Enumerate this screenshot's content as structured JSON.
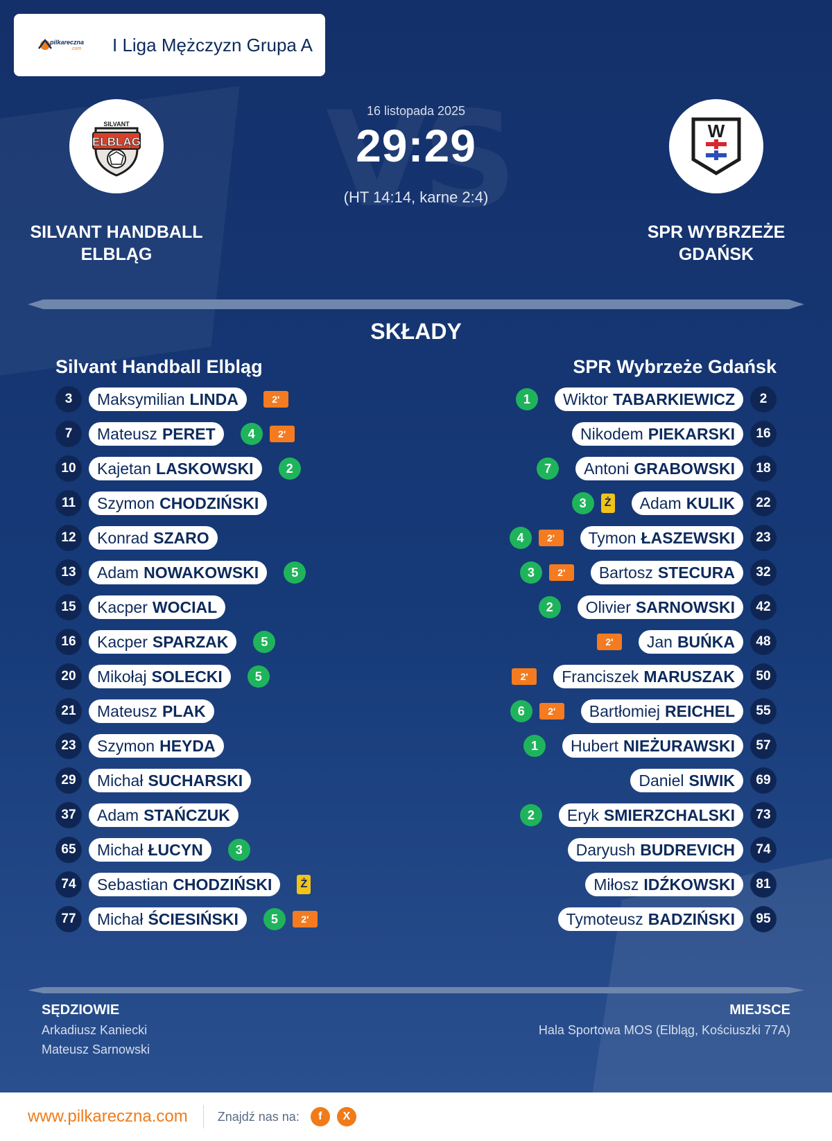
{
  "league": {
    "name": "I Liga Mężczyzn Grupa A",
    "logo_text": "pilkareczna",
    "logo_sub": ".com"
  },
  "match": {
    "date": "16 listopada 2025",
    "score": "29:29",
    "detail": "(HT 14:14, karne 2:4)",
    "vs_watermark": "VS",
    "home_name": "SILVANT HANDBALL ELBLĄG",
    "away_name": "SPR WYBRZEŻE GDAŃSK",
    "home_logo_top": "SILVANT",
    "home_logo_main": "ELBLĄG",
    "away_logo_letter": "W"
  },
  "lineups": {
    "title": "SKŁADY",
    "home_title": "Silvant Handball Elbląg",
    "away_title": "SPR Wybrzeże Gdańsk",
    "home": [
      {
        "num": "3",
        "first": "Maksymilian",
        "last": "LINDA",
        "badges": [
          {
            "type": "pen",
            "text": "2'"
          }
        ]
      },
      {
        "num": "7",
        "first": "Mateusz",
        "last": "PERET",
        "badges": [
          {
            "type": "goals",
            "text": "4"
          },
          {
            "type": "pen",
            "text": "2'"
          }
        ]
      },
      {
        "num": "10",
        "first": "Kajetan",
        "last": "LASKOWSKI",
        "badges": [
          {
            "type": "goals",
            "text": "2"
          }
        ]
      },
      {
        "num": "11",
        "first": "Szymon",
        "last": "CHODZIŃSKI",
        "badges": []
      },
      {
        "num": "12",
        "first": "Konrad",
        "last": "SZARO",
        "badges": []
      },
      {
        "num": "13",
        "first": "Adam",
        "last": "NOWAKOWSKI",
        "badges": [
          {
            "type": "goals",
            "text": "5"
          }
        ]
      },
      {
        "num": "15",
        "first": "Kacper",
        "last": "WOCIAL",
        "badges": []
      },
      {
        "num": "16",
        "first": "Kacper",
        "last": "SPARZAK",
        "badges": [
          {
            "type": "goals",
            "text": "5"
          }
        ]
      },
      {
        "num": "20",
        "first": "Mikołaj",
        "last": "SOLECKI",
        "badges": [
          {
            "type": "goals",
            "text": "5"
          }
        ]
      },
      {
        "num": "21",
        "first": "Mateusz",
        "last": "PLAK",
        "badges": []
      },
      {
        "num": "23",
        "first": "Szymon",
        "last": "HEYDA",
        "badges": []
      },
      {
        "num": "29",
        "first": "Michał",
        "last": "SUCHARSKI",
        "badges": []
      },
      {
        "num": "37",
        "first": "Adam",
        "last": "STAŃCZUK",
        "badges": []
      },
      {
        "num": "65",
        "first": "Michał",
        "last": "ŁUCYN",
        "badges": [
          {
            "type": "goals",
            "text": "3"
          }
        ]
      },
      {
        "num": "74",
        "first": "Sebastian",
        "last": "CHODZIŃSKI",
        "badges": [
          {
            "type": "yel",
            "text": "Ż"
          }
        ]
      },
      {
        "num": "77",
        "first": "Michał",
        "last": "ŚCIESIŃSKI",
        "badges": [
          {
            "type": "goals",
            "text": "5"
          },
          {
            "type": "pen",
            "text": "2'"
          }
        ]
      }
    ],
    "away": [
      {
        "num": "2",
        "first": "Wiktor",
        "last": "TABARKIEWICZ",
        "badges": [
          {
            "type": "goals",
            "text": "1"
          }
        ]
      },
      {
        "num": "16",
        "first": "Nikodem",
        "last": "PIEKARSKI",
        "badges": []
      },
      {
        "num": "18",
        "first": "Antoni",
        "last": "GRABOWSKI",
        "badges": [
          {
            "type": "goals",
            "text": "7"
          }
        ]
      },
      {
        "num": "22",
        "first": "Adam",
        "last": "KULIK",
        "badges": [
          {
            "type": "yel",
            "text": "Ż"
          },
          {
            "type": "goals",
            "text": "3"
          }
        ]
      },
      {
        "num": "23",
        "first": "Tymon",
        "last": "ŁASZEWSKI",
        "badges": [
          {
            "type": "pen",
            "text": "2'"
          },
          {
            "type": "goals",
            "text": "4"
          }
        ]
      },
      {
        "num": "32",
        "first": "Bartosz",
        "last": "STECURA",
        "badges": [
          {
            "type": "pen",
            "text": "2'"
          },
          {
            "type": "goals",
            "text": "3"
          }
        ]
      },
      {
        "num": "42",
        "first": "Olivier",
        "last": "SARNOWSKI",
        "badges": [
          {
            "type": "goals",
            "text": "2"
          }
        ]
      },
      {
        "num": "48",
        "first": "Jan",
        "last": "BUŃKA",
        "badges": [
          {
            "type": "pen",
            "text": "2'"
          }
        ]
      },
      {
        "num": "50",
        "first": "Franciszek",
        "last": "MARUSZAK",
        "badges": [
          {
            "type": "pen",
            "text": "2'"
          }
        ]
      },
      {
        "num": "55",
        "first": "Bartłomiej",
        "last": "REICHEL",
        "badges": [
          {
            "type": "pen",
            "text": "2'"
          },
          {
            "type": "goals",
            "text": "6"
          }
        ]
      },
      {
        "num": "57",
        "first": "Hubert",
        "last": "NIEŻURAWSKI",
        "badges": [
          {
            "type": "goals",
            "text": "1"
          }
        ]
      },
      {
        "num": "69",
        "first": "Daniel",
        "last": "SIWIK",
        "badges": []
      },
      {
        "num": "73",
        "first": "Eryk",
        "last": "SMIERZCHALSKI",
        "badges": [
          {
            "type": "goals",
            "text": "2"
          }
        ]
      },
      {
        "num": "74",
        "first": "Daryush",
        "last": "BUDREVICH",
        "badges": []
      },
      {
        "num": "81",
        "first": "Miłosz",
        "last": "IDŹKOWSKI",
        "badges": []
      },
      {
        "num": "95",
        "first": "Tymoteusz",
        "last": "BADZIŃSKI",
        "badges": []
      }
    ]
  },
  "officials": {
    "referees_title": "SĘDZIOWIE",
    "referee1": "Arkadiusz Kaniecki",
    "referee2": "Mateusz Sarnowski",
    "venue_title": "MIEJSCE",
    "venue": "Hala Sportowa MOS (Elbląg, Kościuszki 77A)"
  },
  "footer": {
    "site": "www.pilkareczna.com",
    "find_us": "Znajdź nas na:",
    "facebook": "f",
    "x": "X"
  },
  "colors": {
    "background": "#14306a",
    "accent": "#f07b1a",
    "goals": "#1fb45c",
    "penalty": "#f47b20",
    "yellow": "#f2c318",
    "navy": "#0d2a5c"
  },
  "icons": [
    "pilkareczna-logo-icon",
    "handball-logo-icon",
    "wybrzeze-logo-icon",
    "facebook-icon",
    "x-icon"
  ]
}
